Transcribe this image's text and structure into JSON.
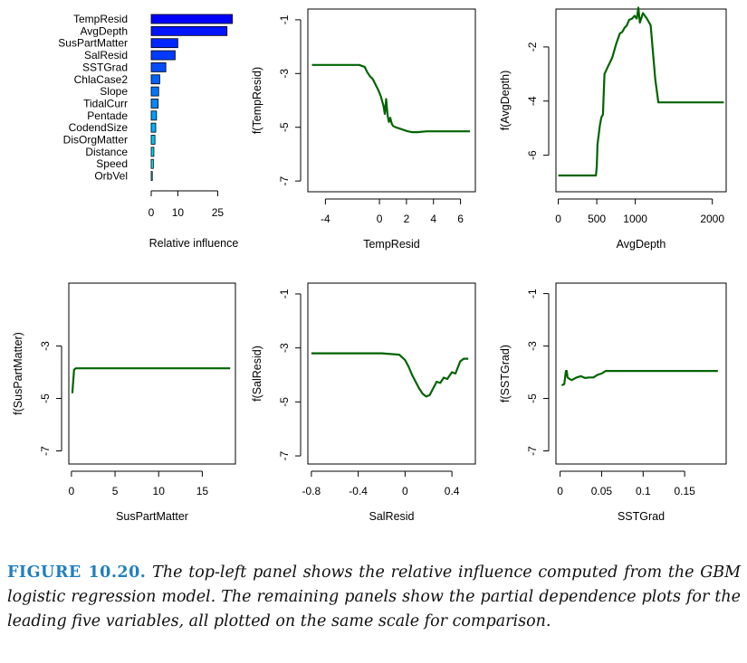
{
  "chart_data": [
    {
      "type": "bar",
      "orientation": "horizontal",
      "xlabel": "Relative influence",
      "categories": [
        "TempResid",
        "AvgDepth",
        "SusPartMatter",
        "SalResid",
        "SSTGrad",
        "ChlaCase2",
        "Slope",
        "TidalCurr",
        "Pentade",
        "CodendSize",
        "DisOrgMatter",
        "Distance",
        "Speed",
        "OrbVel"
      ],
      "values": [
        30.5,
        28.5,
        10.0,
        9.0,
        5.5,
        3.2,
        2.8,
        2.6,
        2.0,
        1.7,
        1.4,
        1.0,
        0.8,
        0.1
      ],
      "xticks": [
        0,
        10,
        25
      ],
      "xlim": [
        0,
        32
      ],
      "bar_color_top": "#0000ff",
      "bar_color_bottom": "#00ffff"
    },
    {
      "type": "line",
      "xlabel": "TempResid",
      "ylabel": "f(TempResid)",
      "xticks": [
        -4,
        0,
        2,
        4,
        6
      ],
      "yticks": [
        -1,
        -3,
        -5,
        -7
      ],
      "xlim": [
        -5.3,
        7.1
      ],
      "ylim": [
        -7.4,
        -0.6
      ],
      "color": "#006400",
      "x": [
        -5.0,
        -4.0,
        -3.0,
        -2.0,
        -1.5,
        -1.1,
        -0.9,
        -0.7,
        -0.5,
        -0.3,
        -0.1,
        0.1,
        0.3,
        0.4,
        0.5,
        0.6,
        0.7,
        0.8,
        0.9,
        1.0,
        1.2,
        1.5,
        1.8,
        2.1,
        2.4,
        2.8,
        3.5,
        4.5,
        5.5,
        6.7
      ],
      "y": [
        -2.68,
        -2.68,
        -2.68,
        -2.68,
        -2.68,
        -2.75,
        -2.95,
        -3.1,
        -3.2,
        -3.4,
        -3.6,
        -3.85,
        -4.2,
        -4.5,
        -3.95,
        -4.55,
        -4.8,
        -4.65,
        -4.85,
        -4.95,
        -5.0,
        -5.05,
        -5.1,
        -5.15,
        -5.18,
        -5.18,
        -5.15,
        -5.15,
        -5.15,
        -5.15
      ]
    },
    {
      "type": "line",
      "xlabel": "AvgDepth",
      "ylabel": "f(AvgDepth)",
      "xticks": [
        0,
        500,
        1000,
        2000
      ],
      "yticks": [
        -2,
        -4,
        -6
      ],
      "xlim": [
        -30,
        2180
      ],
      "ylim": [
        -7.35,
        -0.6
      ],
      "color": "#006400",
      "x": [
        0,
        100,
        200,
        300,
        400,
        490,
        500,
        510,
        540,
        560,
        580,
        600,
        650,
        700,
        750,
        800,
        830,
        860,
        890,
        920,
        960,
        990,
        1020,
        1040,
        1060,
        1100,
        1150,
        1200,
        1260,
        1300,
        1400,
        1600,
        1800,
        2150
      ],
      "y": [
        -6.75,
        -6.75,
        -6.75,
        -6.75,
        -6.75,
        -6.75,
        -6.4,
        -5.6,
        -4.9,
        -4.6,
        -4.5,
        -3.0,
        -2.7,
        -2.4,
        -1.9,
        -1.5,
        -1.45,
        -1.3,
        -1.2,
        -1.0,
        -0.95,
        -0.85,
        -0.95,
        -0.55,
        -1.1,
        -0.75,
        -0.95,
        -1.2,
        -3.2,
        -4.05,
        -4.05,
        -4.05,
        -4.05,
        -4.05
      ]
    },
    {
      "type": "line",
      "xlabel": "SusPartMatter",
      "ylabel": "f(SusPartMatter)",
      "xticks": [
        0,
        5,
        10,
        15
      ],
      "yticks": [
        -3,
        -5,
        -7
      ],
      "xlim": [
        -0.3,
        18.8
      ],
      "ylim": [
        -7.5,
        -0.6
      ],
      "color": "#006400",
      "x": [
        0.1,
        0.3,
        0.5,
        1.0,
        5.0,
        10.0,
        15.0,
        18.2
      ],
      "y": [
        -4.8,
        -3.9,
        -3.85,
        -3.85,
        -3.85,
        -3.85,
        -3.85,
        -3.85
      ]
    },
    {
      "type": "line",
      "xlabel": "SalResid",
      "ylabel": "f(SalResid)",
      "xticks": [
        -0.8,
        -0.4,
        0.0,
        0.4
      ],
      "yticks": [
        -1,
        -3,
        -5,
        -7
      ],
      "xlim": [
        -0.83,
        0.6
      ],
      "ylim": [
        -7.3,
        -0.6
      ],
      "color": "#006400",
      "x": [
        -0.8,
        -0.6,
        -0.4,
        -0.2,
        -0.05,
        0.0,
        0.03,
        0.06,
        0.09,
        0.12,
        0.15,
        0.18,
        0.21,
        0.24,
        0.27,
        0.3,
        0.33,
        0.36,
        0.4,
        0.43,
        0.47,
        0.5,
        0.54
      ],
      "y": [
        -3.2,
        -3.2,
        -3.2,
        -3.2,
        -3.25,
        -3.45,
        -3.7,
        -4.0,
        -4.25,
        -4.5,
        -4.7,
        -4.8,
        -4.75,
        -4.5,
        -4.25,
        -4.3,
        -4.1,
        -4.15,
        -3.9,
        -3.95,
        -3.5,
        -3.4,
        -3.4
      ]
    },
    {
      "type": "line",
      "xlabel": "SSTGrad",
      "ylabel": "f(SSTGrad)",
      "xticks": [
        0.0,
        0.05,
        0.1,
        0.15
      ],
      "yticks": [
        -1,
        -3,
        -5,
        -7
      ],
      "xlim": [
        -0.005,
        0.2
      ],
      "ylim": [
        -7.5,
        -0.6
      ],
      "color": "#006400",
      "x": [
        0.002,
        0.005,
        0.007,
        0.008,
        0.009,
        0.011,
        0.014,
        0.02,
        0.025,
        0.03,
        0.035,
        0.04,
        0.045,
        0.05,
        0.055,
        0.065,
        0.08,
        0.1,
        0.12,
        0.15,
        0.19
      ],
      "y": [
        -4.5,
        -4.45,
        -3.95,
        -3.95,
        -4.2,
        -4.25,
        -4.3,
        -4.2,
        -4.15,
        -4.22,
        -4.2,
        -4.2,
        -4.1,
        -4.05,
        -3.95,
        -3.95,
        -3.95,
        -3.95,
        -3.95,
        -3.95,
        -3.95
      ]
    }
  ],
  "caption": {
    "label": "FIGURE 10.20.",
    "text": "The top-left panel shows the relative influence computed from the GBM logistic regression model. The remaining panels show the partial dependence plots for the leading five variables, all plotted on the same scale for comparison."
  }
}
